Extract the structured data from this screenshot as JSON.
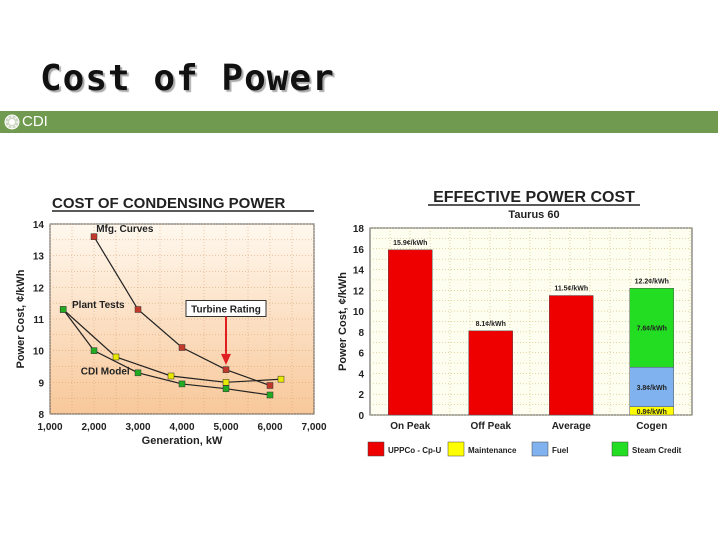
{
  "slide": {
    "title": "Cost of Power",
    "band_label": "CDI",
    "band_color": "#6f9a4f"
  },
  "chart_data": [
    {
      "type": "line",
      "title": "COST OF CONDENSING POWER",
      "xlabel": "Generation, kW",
      "ylabel": "Power Cost, ¢/kWh",
      "xlim": [
        1000,
        7000
      ],
      "ylim": [
        8,
        14
      ],
      "x_ticks": [
        "1,000",
        "2,000",
        "3,000",
        "4,000",
        "5,000",
        "6,000",
        "7,000"
      ],
      "y_ticks": [
        "8",
        "9",
        "10",
        "11",
        "12",
        "13",
        "14"
      ],
      "grid": true,
      "series": [
        {
          "name": "Mfg. Curves",
          "color": "#c0392b",
          "points": [
            [
              2000,
              13.6
            ],
            [
              3000,
              11.3
            ],
            [
              4000,
              10.1
            ],
            [
              5000,
              9.4
            ],
            [
              6000,
              8.9
            ]
          ]
        },
        {
          "name": "Plant Tests",
          "color": "#e8e800",
          "points": [
            [
              1300,
              11.3
            ],
            [
              2500,
              9.8
            ],
            [
              3750,
              9.2
            ],
            [
              5000,
              9.0
            ],
            [
              6250,
              9.1
            ]
          ]
        },
        {
          "name": "CDI Model",
          "color": "#22aa22",
          "points": [
            [
              1300,
              11.3
            ],
            [
              2000,
              10.0
            ],
            [
              3000,
              9.3
            ],
            [
              4000,
              8.95
            ],
            [
              5000,
              8.8
            ],
            [
              6000,
              8.6
            ]
          ]
        }
      ],
      "annotations": {
        "turbine_rating": "Turbine Rating",
        "turbine_rating_x": 5000
      }
    },
    {
      "type": "bar",
      "title": "EFFECTIVE POWER COST",
      "subtitle": "Taurus 60",
      "ylabel": "Power Cost, ¢/kWh",
      "ylim": [
        0,
        18
      ],
      "y_ticks": [
        "0",
        "2",
        "4",
        "6",
        "8",
        "10",
        "12",
        "14",
        "16",
        "18"
      ],
      "categories": [
        "On Peak",
        "Off Peak",
        "Average",
        "Cogen"
      ],
      "series": [
        {
          "name": "UPPCo - Cp-U",
          "color": "#ee0000",
          "values": [
            15.9,
            8.1,
            11.5,
            0
          ]
        },
        {
          "name": "Maintenance",
          "color": "#ffff00",
          "values": [
            0,
            0,
            0,
            0.8
          ]
        },
        {
          "name": "Fuel",
          "color": "#7fb2ee",
          "values": [
            0,
            0,
            0,
            3.8
          ]
        },
        {
          "name": "Steam Credit",
          "color": "#22dd22",
          "values": [
            0,
            0,
            0,
            7.6
          ]
        }
      ],
      "bar_labels": [
        "15.9¢/kWh",
        "8.1¢/kWh",
        "11.5¢/kWh",
        "12.2¢/kWh"
      ],
      "segment_labels": {
        "maintenance": "0.8¢/kWh",
        "fuel": "3.8¢/kWh",
        "steam_credit": "7.6¢/kWh"
      },
      "legend_position": "bottom"
    }
  ]
}
